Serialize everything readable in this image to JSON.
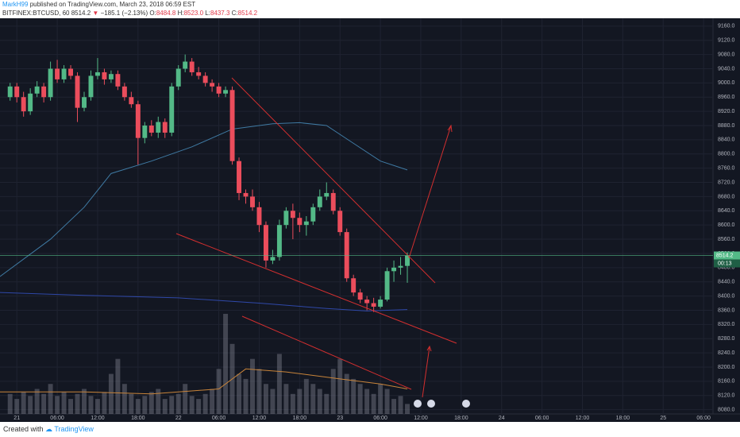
{
  "header": {
    "author": "MarkH99",
    "published": "published on TradingView.com, March 23, 2018 06:59 EST",
    "symbol": "BITFINEX:BTCUSD, 60",
    "last": "8514.2",
    "arrow": "▼",
    "change": "−185.1 (−2.13%)",
    "o_label": "O:",
    "o": "8484.8",
    "h_label": "H:",
    "h": "8523.0",
    "l_label": "L:",
    "l": "8437.3",
    "c_label": "C:",
    "c": "8514.2"
  },
  "footer": {
    "created": "Created with",
    "brand": "TradingView"
  },
  "chart_data": {
    "type": "candlestick",
    "colors": {
      "up": "#53b987",
      "down": "#eb4d5c",
      "volume": "#8a8d99",
      "grid": "#1f2331"
    },
    "x": [
      -1,
      0,
      1,
      2,
      3,
      4,
      5,
      6,
      7,
      8,
      9,
      10,
      11,
      12,
      13,
      14,
      15,
      16,
      17,
      18,
      19,
      20,
      21,
      22,
      23,
      24,
      25,
      26,
      27,
      28,
      29,
      30,
      31,
      32,
      33,
      34,
      35,
      36,
      37,
      38,
      39,
      40,
      41,
      42,
      43,
      44,
      45,
      46,
      47,
      48,
      49,
      50,
      51,
      52,
      53,
      54,
      55,
      56,
      57,
      58
    ],
    "ohlc": [
      [
        8960,
        9000,
        8950,
        8990
      ],
      [
        8990,
        9000,
        8945,
        8960
      ],
      [
        8960,
        8975,
        8905,
        8920
      ],
      [
        8920,
        8985,
        8910,
        8970
      ],
      [
        8970,
        9005,
        8960,
        8990
      ],
      [
        8990,
        9000,
        8945,
        8960
      ],
      [
        8960,
        9060,
        8950,
        9040
      ],
      [
        9040,
        9065,
        9000,
        9010
      ],
      [
        9010,
        9050,
        9000,
        9040
      ],
      [
        9040,
        9050,
        9010,
        9020
      ],
      [
        9020,
        9030,
        8890,
        8930
      ],
      [
        8930,
        8975,
        8920,
        8960
      ],
      [
        8960,
        9035,
        8950,
        9020
      ],
      [
        9020,
        9070,
        9010,
        9030
      ],
      [
        9030,
        9040,
        8995,
        9010
      ],
      [
        9010,
        9035,
        9000,
        9025
      ],
      [
        9025,
        9035,
        8980,
        8990
      ],
      [
        8990,
        9000,
        8950,
        8960
      ],
      [
        8960,
        8975,
        8930,
        8940
      ],
      [
        8940,
        8950,
        8770,
        8845
      ],
      [
        8845,
        8890,
        8830,
        8880
      ],
      [
        8880,
        8895,
        8850,
        8860
      ],
      [
        8860,
        8905,
        8845,
        8890
      ],
      [
        8890,
        8900,
        8845,
        8860
      ],
      [
        8860,
        9000,
        8850,
        8990
      ],
      [
        8990,
        9050,
        8980,
        9040
      ],
      [
        9040,
        9080,
        9030,
        9060
      ],
      [
        9060,
        9070,
        9020,
        9030
      ],
      [
        9030,
        9045,
        9010,
        9020
      ],
      [
        9020,
        9030,
        8990,
        9000
      ],
      [
        9000,
        9010,
        8975,
        8990
      ],
      [
        8990,
        9000,
        8960,
        8970
      ],
      [
        8970,
        8990,
        8960,
        8980
      ],
      [
        8980,
        8990,
        8770,
        8780
      ],
      [
        8780,
        8790,
        8670,
        8690
      ],
      [
        8690,
        8700,
        8660,
        8680
      ],
      [
        8680,
        8700,
        8640,
        8650
      ],
      [
        8650,
        8665,
        8580,
        8600
      ],
      [
        8600,
        8610,
        8480,
        8500
      ],
      [
        8500,
        8530,
        8490,
        8510
      ],
      [
        8510,
        8615,
        8500,
        8600
      ],
      [
        8600,
        8650,
        8590,
        8640
      ],
      [
        8640,
        8660,
        8560,
        8620
      ],
      [
        8620,
        8635,
        8580,
        8600
      ],
      [
        8600,
        8625,
        8570,
        8610
      ],
      [
        8610,
        8660,
        8600,
        8650
      ],
      [
        8650,
        8700,
        8640,
        8680
      ],
      [
        8680,
        8720,
        8670,
        8690
      ],
      [
        8690,
        8700,
        8630,
        8640
      ],
      [
        8640,
        8650,
        8570,
        8580
      ],
      [
        8580,
        8590,
        8440,
        8450
      ],
      [
        8450,
        8460,
        8400,
        8410
      ],
      [
        8410,
        8420,
        8380,
        8390
      ],
      [
        8390,
        8400,
        8360,
        8380
      ],
      [
        8380,
        8395,
        8355,
        8370
      ],
      [
        8370,
        8400,
        8365,
        8390
      ],
      [
        8390,
        8480,
        8385,
        8470
      ],
      [
        8470,
        8500,
        8440,
        8480
      ],
      [
        8480,
        8510,
        8460,
        8484.8
      ],
      [
        8484.8,
        8523.0,
        8437.3,
        8514.2
      ]
    ],
    "volume": [
      20,
      15,
      22,
      18,
      25,
      20,
      30,
      18,
      22,
      15,
      20,
      25,
      18,
      15,
      22,
      40,
      55,
      30,
      20,
      15,
      18,
      22,
      25,
      15,
      18,
      20,
      30,
      18,
      15,
      20,
      25,
      45,
      100,
      70,
      40,
      35,
      55,
      45,
      30,
      25,
      60,
      30,
      20,
      25,
      35,
      30,
      25,
      20,
      45,
      55,
      40,
      35,
      30,
      25,
      20,
      30,
      25,
      15,
      18,
      10
    ],
    "overlays": [
      {
        "color": "#3f7aa3",
        "x": [
          -2.5,
          5,
          10,
          14,
          20,
          26,
          32,
          38,
          42,
          46,
          50,
          54,
          58
        ],
        "values": [
          8455,
          8560,
          8650,
          8745,
          8780,
          8820,
          8870,
          8885,
          8888,
          8880,
          8830,
          8780,
          8755
        ]
      },
      {
        "color": "#2f48a8",
        "x": [
          -2.5,
          10,
          24,
          36,
          46,
          52,
          58
        ],
        "values": [
          8410,
          8402,
          8395,
          8380,
          8365,
          8358,
          8362
        ]
      }
    ],
    "volume_ma": {
      "color": "#c8843a",
      "x": [
        -2.5,
        10,
        20,
        30,
        34,
        40,
        48,
        54,
        58
      ],
      "values": [
        22,
        22,
        20,
        25,
        45,
        42,
        35,
        30,
        25
      ]
    },
    "last_price": "8514.2",
    "countdown": "00:13",
    "xlim": [
      -2.5,
      103.4
    ],
    "ylim": [
      8068,
      9182
    ],
    "xticks": [
      {
        "value": 0,
        "label": "21"
      },
      {
        "value": 6,
        "label": "06:00"
      },
      {
        "value": 12,
        "label": "12:00"
      },
      {
        "value": 18,
        "label": "18:00"
      },
      {
        "value": 24,
        "label": "22"
      },
      {
        "value": 30,
        "label": "06:00"
      },
      {
        "value": 36,
        "label": "12:00"
      },
      {
        "value": 42,
        "label": "18:00"
      },
      {
        "value": 48,
        "label": "23"
      },
      {
        "value": 54,
        "label": "06:00"
      },
      {
        "value": 60,
        "label": "12:00"
      },
      {
        "value": 66,
        "label": "18:00"
      },
      {
        "value": 72,
        "label": "24"
      },
      {
        "value": 78,
        "label": "06:00"
      },
      {
        "value": 84,
        "label": "12:00"
      },
      {
        "value": 90,
        "label": "18:00"
      },
      {
        "value": 96,
        "label": "25"
      },
      {
        "value": 102,
        "label": "06:00"
      }
    ],
    "yticks": [
      {
        "value": 9160,
        "label": "9160.0"
      },
      {
        "value": 9120,
        "label": "9120.0"
      },
      {
        "value": 9080,
        "label": "9080.0"
      },
      {
        "value": 9040,
        "label": "9040.0"
      },
      {
        "value": 9000,
        "label": "9000.0"
      },
      {
        "value": 8960,
        "label": "8960.0"
      },
      {
        "value": 8920,
        "label": "8920.0"
      },
      {
        "value": 8880,
        "label": "8880.0"
      },
      {
        "value": 8840,
        "label": "8840.0"
      },
      {
        "value": 8800,
        "label": "8800.0"
      },
      {
        "value": 8760,
        "label": "8760.0"
      },
      {
        "value": 8720,
        "label": "8720.0"
      },
      {
        "value": 8680,
        "label": "8680.0"
      },
      {
        "value": 8640,
        "label": "8640.0"
      },
      {
        "value": 8600,
        "label": "8600.0"
      },
      {
        "value": 8560,
        "label": "8560.0"
      },
      {
        "value": 8520,
        "label": "8520.0"
      },
      {
        "value": 8480,
        "label": "8480.0"
      },
      {
        "value": 8440,
        "label": "8440.0"
      },
      {
        "value": 8400,
        "label": "8400.0"
      },
      {
        "value": 8360,
        "label": "8360.0"
      },
      {
        "value": 8320,
        "label": "8320.0"
      },
      {
        "value": 8280,
        "label": "8280.0"
      },
      {
        "value": 8240,
        "label": "8240.0"
      },
      {
        "value": 8200,
        "label": "8200.0"
      },
      {
        "value": 8160,
        "label": "8160.0"
      },
      {
        "value": 8120,
        "label": "8120.0"
      },
      {
        "value": 8080,
        "label": "8080.0"
      }
    ],
    "grid": true
  }
}
